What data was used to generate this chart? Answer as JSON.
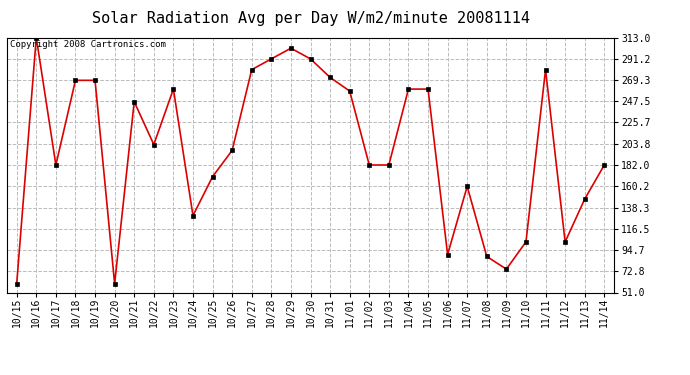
{
  "title": "Solar Radiation Avg per Day W/m2/minute 20081114",
  "copyright": "Copyright 2008 Cartronics.com",
  "labels": [
    "10/15",
    "10/16",
    "10/17",
    "10/18",
    "10/19",
    "10/20",
    "10/21",
    "10/22",
    "10/23",
    "10/24",
    "10/25",
    "10/26",
    "10/27",
    "10/28",
    "10/29",
    "10/30",
    "10/31",
    "11/01",
    "11/02",
    "11/03",
    "11/04",
    "11/05",
    "11/06",
    "11/07",
    "11/08",
    "11/09",
    "11/10",
    "11/11",
    "11/12",
    "11/13",
    "11/14"
  ],
  "values": [
    60,
    313,
    182,
    269,
    269,
    60,
    247,
    203,
    260,
    130,
    170,
    197,
    280,
    291,
    302,
    291,
    272,
    258,
    182,
    182,
    260,
    260,
    90,
    160,
    88,
    75,
    103,
    280,
    103,
    147,
    182
  ],
  "line_color": "#dd0000",
  "marker_color": "#000000",
  "bg_color": "#ffffff",
  "plot_bg_color": "#ffffff",
  "grid_color": "#bbbbbb",
  "yticks": [
    51.0,
    72.8,
    94.7,
    116.5,
    138.3,
    160.2,
    182.0,
    203.8,
    225.7,
    247.5,
    269.3,
    291.2,
    313.0
  ],
  "ylim": [
    51.0,
    313.0
  ],
  "title_fontsize": 11,
  "tick_fontsize": 7,
  "copyright_fontsize": 6.5
}
